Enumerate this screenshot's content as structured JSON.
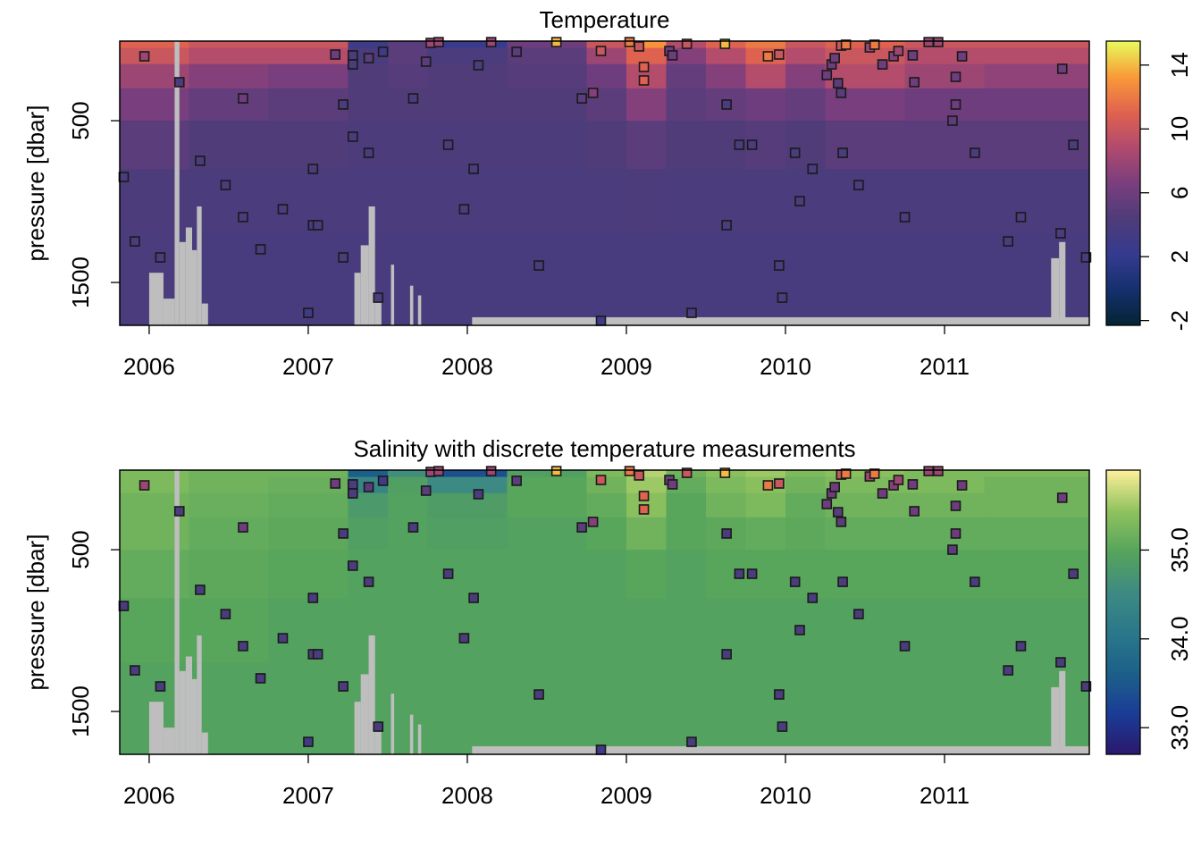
{
  "chart_data": [
    {
      "type": "heatmap",
      "title": "Temperature",
      "ylabel": "pressure [dbar]",
      "xlim": [
        2005.815,
        2011.91
      ],
      "ylim": [
        1765,
        8
      ],
      "xticks": [
        2006,
        2007,
        2008,
        2009,
        2010,
        2011
      ],
      "yticks": [
        500,
        1500
      ],
      "x_edges": [
        2005.815,
        2006.25,
        2006.75,
        2007.25,
        2007.5,
        2007.75,
        2008.25,
        2008.75,
        2009,
        2009.25,
        2009.5,
        2009.75,
        2010,
        2010.25,
        2010.75,
        2011.25,
        2011.91
      ],
      "y_edges": [
        0,
        50,
        150,
        300,
        500,
        800,
        1200,
        1765
      ],
      "z": [
        [
          11,
          10,
          8,
          6.5,
          5,
          4.2,
          4
        ],
        [
          10,
          9,
          7,
          5.5,
          4.5,
          4,
          3.8
        ],
        [
          10,
          9,
          6.5,
          5,
          4.5,
          4,
          3.8
        ],
        [
          3,
          4,
          4.5,
          4.5,
          4.2,
          4,
          3.8
        ],
        [
          5,
          5,
          4.8,
          4.5,
          4.2,
          4,
          3.8
        ],
        [
          2.5,
          4,
          4.5,
          4.5,
          4.2,
          4,
          3.8
        ],
        [
          6,
          5,
          4.8,
          4.5,
          4.2,
          4,
          3.8
        ],
        [
          10,
          8,
          6,
          5,
          4.5,
          4,
          3.8
        ],
        [
          13,
          11,
          9,
          7,
          5,
          4.2,
          3.8
        ],
        [
          9,
          7,
          5.5,
          5,
          4.5,
          4,
          3.8
        ],
        [
          11,
          9,
          7,
          5.5,
          4.5,
          4,
          3.8
        ],
        [
          12,
          11,
          9,
          6,
          4.8,
          4,
          3.8
        ],
        [
          10,
          9,
          7,
          5.5,
          4.5,
          4,
          3.8
        ],
        [
          11,
          10,
          9,
          6.5,
          5,
          4,
          3.8
        ],
        [
          10,
          9,
          8,
          6,
          5,
          4,
          3.8
        ],
        [
          10,
          9,
          7.5,
          6,
          5,
          4,
          3.8
        ]
      ],
      "colorbar": {
        "clim": [
          -2.3,
          15.5
        ],
        "ticks": [
          -2,
          2,
          6,
          10,
          14
        ],
        "colormap": [
          "#042333",
          "#14306d",
          "#353b8f",
          "#4e3c79",
          "#7a3e7e",
          "#b04a6e",
          "#e0624f",
          "#f99a38",
          "#e8fa5b"
        ]
      },
      "nodata": {
        "color": "#bebebe",
        "x_start": [
          2006.0,
          2006.09,
          2006.16,
          2006.19,
          2006.23,
          2006.27,
          2006.3,
          2006.33,
          2007.29,
          2007.33,
          2007.38,
          2007.42,
          2007.52,
          2007.64,
          2007.69,
          2011.67,
          2011.72,
          2008.03
        ],
        "x_end": [
          2006.09,
          2006.16,
          2006.19,
          2006.23,
          2006.27,
          2006.3,
          2006.33,
          2006.37,
          2007.33,
          2007.38,
          2007.42,
          2007.46,
          2007.54,
          2007.66,
          2007.71,
          2011.72,
          2011.76,
          2011.91
        ],
        "pressure_top": [
          1440,
          1600,
          8,
          1250,
          1160,
          1300,
          1030,
          1630,
          1440,
          1270,
          1030,
          1600,
          1390,
          1520,
          1580,
          1350,
          1250,
          1715
        ]
      },
      "points": {
        "x": [
          2005.97,
          2006.19,
          2006.32,
          2005.84,
          2005.91,
          2006.07,
          2006.48,
          2006.59,
          2006.59,
          2006.7,
          2006.84,
          2007.0,
          2007.03,
          2007.03,
          2007.06,
          2007.17,
          2007.22,
          2007.22,
          2007.28,
          2007.28,
          2007.28,
          2007.38,
          2007.38,
          2007.47,
          2007.44,
          2007.66,
          2007.74,
          2007.77,
          2007.82,
          2007.88,
          2008.07,
          2008.04,
          2007.98,
          2008.15,
          2008.31,
          2008.45,
          2008.56,
          2008.72,
          2008.79,
          2008.84,
          2008.84,
          2009.02,
          2009.08,
          2009.11,
          2009.11,
          2009.27,
          2009.29,
          2009.38,
          2009.41,
          2009.62,
          2009.63,
          2009.63,
          2009.71,
          2009.79,
          2009.89,
          2009.96,
          2009.96,
          2009.98,
          2010.06,
          2010.09,
          2010.17,
          2010.26,
          2010.29,
          2010.31,
          2010.33,
          2010.35,
          2010.35,
          2010.36,
          2010.38,
          2010.46,
          2010.53,
          2010.56,
          2010.61,
          2010.68,
          2010.71,
          2010.75,
          2010.81,
          2010.8,
          2010.9,
          2010.96,
          2011.05,
          2011.07,
          2011.07,
          2011.11,
          2011.19,
          2011.4,
          2011.48,
          2011.73,
          2011.74,
          2011.81,
          2011.89
        ],
        "y": [
          102,
          262,
          748,
          848,
          1246,
          1345,
          898,
          362,
          1096,
          1295,
          1047,
          1688,
          798,
          1146,
          1146,
          91,
          400,
          1345,
          599,
          96,
          152,
          113,
          699,
          74,
          1594,
          362,
          135,
          19,
          14,
          649,
          157,
          798,
          1047,
          14,
          74,
          1395,
          14,
          362,
          328,
          69,
          1737,
          14,
          41,
          168,
          251,
          69,
          96,
          25,
          1688,
          25,
          400,
          1146,
          649,
          649,
          102,
          91,
          1395,
          1594,
          699,
          997,
          798,
          218,
          152,
          113,
          268,
          328,
          36,
          699,
          30,
          898,
          47,
          30,
          152,
          102,
          69,
          1096,
          262,
          96,
          14,
          14,
          500,
          400,
          229,
          102,
          699,
          1246,
          1096,
          1196,
          179,
          649,
          1345
        ],
        "values": [
          8,
          4,
          4,
          4,
          4,
          4,
          4,
          6,
          4,
          4,
          4,
          3,
          4,
          4,
          4,
          6,
          4,
          4,
          4,
          4,
          4,
          5,
          4,
          3,
          4,
          4,
          5,
          8,
          8,
          4,
          4,
          4,
          4,
          8,
          5,
          4,
          14,
          5,
          7,
          10,
          3,
          12,
          10,
          11,
          11,
          6,
          6,
          10,
          4,
          14,
          4,
          4,
          4,
          4,
          12,
          10,
          4,
          4,
          4,
          4,
          4,
          6,
          6,
          6,
          5,
          5,
          10,
          4,
          12,
          4,
          8,
          12,
          6,
          7,
          8,
          4,
          6,
          6,
          8,
          8,
          5,
          6,
          6,
          6,
          4,
          4,
          4,
          4,
          6,
          4,
          4
        ]
      }
    },
    {
      "type": "heatmap",
      "title": "Salinity with discrete temperature measurements",
      "ylabel": "pressure [dbar]",
      "xlim": [
        2005.815,
        2011.91
      ],
      "ylim": [
        1765,
        8
      ],
      "xticks": [
        2006,
        2007,
        2008,
        2009,
        2010,
        2011
      ],
      "yticks": [
        500,
        1500
      ],
      "x_edges": [
        2005.815,
        2006.25,
        2006.75,
        2007.25,
        2007.5,
        2007.75,
        2008.25,
        2008.75,
        2009,
        2009.25,
        2009.5,
        2009.75,
        2010,
        2010.25,
        2010.75,
        2011.25,
        2011.91
      ],
      "y_edges": [
        0,
        50,
        150,
        300,
        500,
        800,
        1200,
        1765
      ],
      "z": [
        [
          35.3,
          35.3,
          35.2,
          35.2,
          35.1,
          35.0,
          34.95
        ],
        [
          35.2,
          35.2,
          35.15,
          35.1,
          35.05,
          35.0,
          34.95
        ],
        [
          35.2,
          35.15,
          35.1,
          35.05,
          35.0,
          34.95,
          34.95
        ],
        [
          33.6,
          34.4,
          34.8,
          34.9,
          34.95,
          34.95,
          34.95
        ],
        [
          34.6,
          34.9,
          34.95,
          34.95,
          34.95,
          34.95,
          34.95
        ],
        [
          33.4,
          34.5,
          34.85,
          34.9,
          34.95,
          34.95,
          34.95
        ],
        [
          34.9,
          35.0,
          35.0,
          34.95,
          34.95,
          34.95,
          34.95
        ],
        [
          35.3,
          35.2,
          35.1,
          35.0,
          34.95,
          34.95,
          34.95
        ],
        [
          35.6,
          35.5,
          35.4,
          35.2,
          35.0,
          34.95,
          34.95
        ],
        [
          35.2,
          35.1,
          35.0,
          35.0,
          34.95,
          34.95,
          34.95
        ],
        [
          35.4,
          35.3,
          35.2,
          35.05,
          35.0,
          34.95,
          34.95
        ],
        [
          35.5,
          35.4,
          35.3,
          35.1,
          35.0,
          34.95,
          34.95
        ],
        [
          35.3,
          35.2,
          35.1,
          35.05,
          35.0,
          34.95,
          34.95
        ],
        [
          35.4,
          35.3,
          35.2,
          35.1,
          35.0,
          34.95,
          34.95
        ],
        [
          35.3,
          35.3,
          35.2,
          35.1,
          35.0,
          34.95,
          34.95
        ],
        [
          35.3,
          35.2,
          35.2,
          35.1,
          35.0,
          34.95,
          34.95
        ]
      ],
      "colorbar": {
        "clim": [
          32.7,
          35.9
        ],
        "ticks": [
          {
            "value": 33,
            "label": "33.0"
          },
          {
            "value": 34,
            "label": "34.0"
          },
          {
            "value": 35,
            "label": "35.0"
          }
        ],
        "colormap": [
          "#2a186c",
          "#1b3c97",
          "#1c6089",
          "#2a788b",
          "#3e8a82",
          "#56a45c",
          "#8fc25e",
          "#fdef9a"
        ]
      },
      "nodata": {
        "color": "#bebebe",
        "x_start": [
          2006.0,
          2006.09,
          2006.16,
          2006.19,
          2006.23,
          2006.27,
          2006.3,
          2006.33,
          2007.29,
          2007.33,
          2007.38,
          2007.42,
          2007.52,
          2007.64,
          2007.69,
          2011.67,
          2011.72,
          2008.03
        ],
        "x_end": [
          2006.09,
          2006.16,
          2006.19,
          2006.23,
          2006.27,
          2006.3,
          2006.33,
          2006.37,
          2007.33,
          2007.38,
          2007.42,
          2007.46,
          2007.54,
          2007.66,
          2007.71,
          2011.72,
          2011.76,
          2011.91
        ],
        "pressure_top": [
          1440,
          1600,
          8,
          1250,
          1160,
          1300,
          1030,
          1630,
          1440,
          1270,
          1030,
          1600,
          1390,
          1520,
          1580,
          1350,
          1250,
          1715
        ]
      },
      "points": {
        "clim": [
          -2.3,
          15.5
        ],
        "colormap": [
          "#042333",
          "#14306d",
          "#353b8f",
          "#4e3c79",
          "#7a3e7e",
          "#b04a6e",
          "#e0624f",
          "#f99a38",
          "#e8fa5b"
        ],
        "x": [
          2005.97,
          2006.19,
          2006.32,
          2005.84,
          2005.91,
          2006.07,
          2006.48,
          2006.59,
          2006.59,
          2006.7,
          2006.84,
          2007.0,
          2007.03,
          2007.03,
          2007.06,
          2007.17,
          2007.22,
          2007.22,
          2007.28,
          2007.28,
          2007.28,
          2007.38,
          2007.38,
          2007.47,
          2007.44,
          2007.66,
          2007.74,
          2007.77,
          2007.82,
          2007.88,
          2008.07,
          2008.04,
          2007.98,
          2008.15,
          2008.31,
          2008.45,
          2008.56,
          2008.72,
          2008.79,
          2008.84,
          2008.84,
          2009.02,
          2009.08,
          2009.11,
          2009.11,
          2009.27,
          2009.29,
          2009.38,
          2009.41,
          2009.62,
          2009.63,
          2009.63,
          2009.71,
          2009.79,
          2009.89,
          2009.96,
          2009.96,
          2009.98,
          2010.06,
          2010.09,
          2010.17,
          2010.26,
          2010.29,
          2010.31,
          2010.33,
          2010.35,
          2010.35,
          2010.36,
          2010.38,
          2010.46,
          2010.53,
          2010.56,
          2010.61,
          2010.68,
          2010.71,
          2010.75,
          2010.81,
          2010.8,
          2010.9,
          2010.96,
          2011.05,
          2011.07,
          2011.07,
          2011.11,
          2011.19,
          2011.4,
          2011.48,
          2011.73,
          2011.74,
          2011.81,
          2011.89
        ],
        "y": [
          102,
          262,
          748,
          848,
          1246,
          1345,
          898,
          362,
          1096,
          1295,
          1047,
          1688,
          798,
          1146,
          1146,
          91,
          400,
          1345,
          599,
          96,
          152,
          113,
          699,
          74,
          1594,
          362,
          135,
          19,
          14,
          649,
          157,
          798,
          1047,
          14,
          74,
          1395,
          14,
          362,
          328,
          69,
          1737,
          14,
          41,
          168,
          251,
          69,
          96,
          25,
          1688,
          25,
          400,
          1146,
          649,
          649,
          102,
          91,
          1395,
          1594,
          699,
          997,
          798,
          218,
          152,
          113,
          268,
          328,
          36,
          699,
          30,
          898,
          47,
          30,
          152,
          102,
          69,
          1096,
          262,
          96,
          14,
          14,
          500,
          400,
          229,
          102,
          699,
          1246,
          1096,
          1196,
          179,
          649,
          1345
        ],
        "values": [
          8,
          4,
          4,
          4,
          4,
          4,
          4,
          6,
          4,
          4,
          4,
          3,
          4,
          4,
          4,
          6,
          4,
          4,
          4,
          4,
          4,
          5,
          4,
          3,
          4,
          4,
          5,
          8,
          8,
          4,
          4,
          4,
          4,
          8,
          5,
          4,
          14,
          5,
          7,
          10,
          3,
          12,
          10,
          11,
          11,
          6,
          6,
          10,
          4,
          14,
          4,
          4,
          4,
          4,
          12,
          10,
          4,
          4,
          4,
          4,
          4,
          6,
          6,
          6,
          5,
          5,
          10,
          4,
          12,
          4,
          8,
          12,
          6,
          7,
          8,
          4,
          6,
          6,
          8,
          8,
          5,
          6,
          6,
          6,
          4,
          4,
          4,
          4,
          6,
          4,
          4
        ]
      }
    }
  ]
}
